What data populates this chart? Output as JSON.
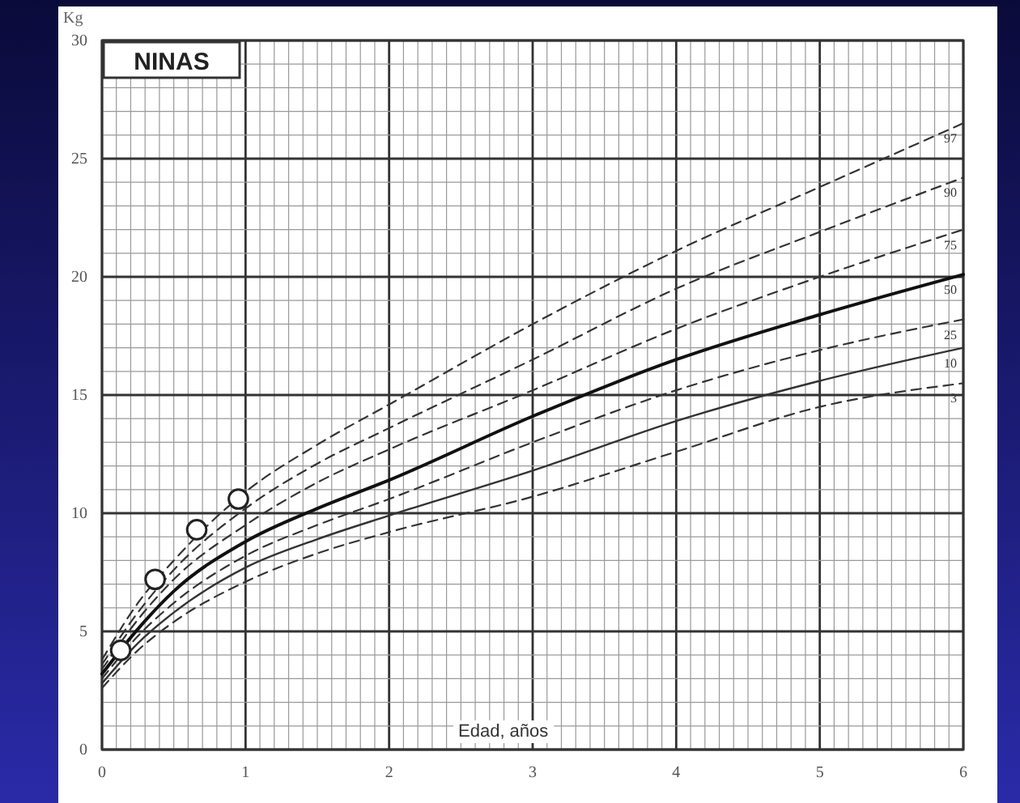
{
  "chart_data": {
    "type": "line",
    "title": "NINAS",
    "xlabel": "Edad, años",
    "ylabel": "Kg",
    "x": [
      0,
      0.25,
      0.5,
      1,
      1.5,
      2,
      3,
      4,
      5,
      6
    ],
    "xlim": [
      0,
      6
    ],
    "xticks": [
      0,
      1,
      2,
      3,
      4,
      5,
      6
    ],
    "ylim": [
      0,
      30
    ],
    "yticks": [
      0,
      5,
      10,
      15,
      20,
      25,
      30
    ],
    "grid": true,
    "series": [
      {
        "name": "97",
        "color": "#333333",
        "line_style": "dashed",
        "values": [
          3.8,
          6.2,
          8.0,
          10.9,
          12.9,
          14.6,
          18.0,
          21.1,
          23.8,
          26.5
        ]
      },
      {
        "name": "90",
        "color": "#333333",
        "line_style": "dashed",
        "values": [
          3.6,
          5.8,
          7.6,
          10.2,
          12.1,
          13.6,
          16.5,
          19.5,
          21.9,
          24.2
        ]
      },
      {
        "name": "75",
        "color": "#333333",
        "line_style": "dashed",
        "values": [
          3.4,
          5.5,
          7.2,
          9.5,
          11.3,
          12.7,
          15.2,
          17.8,
          20.0,
          22.0
        ]
      },
      {
        "name": "50",
        "color": "#111111",
        "line_style": "solid",
        "values": [
          3.2,
          5.1,
          6.7,
          8.8,
          10.2,
          11.4,
          14.1,
          16.5,
          18.4,
          20.1
        ]
      },
      {
        "name": "25",
        "color": "#333333",
        "line_style": "dashed",
        "values": [
          3.0,
          4.8,
          6.2,
          8.2,
          9.5,
          10.6,
          13.0,
          15.2,
          16.9,
          18.2
        ]
      },
      {
        "name": "10",
        "color": "#333333",
        "line_style": "solid",
        "values": [
          2.8,
          4.5,
          5.8,
          7.7,
          8.9,
          9.9,
          11.8,
          13.9,
          15.6,
          17.0
        ]
      },
      {
        "name": "3",
        "color": "#333333",
        "line_style": "dashed",
        "values": [
          2.6,
          4.2,
          5.4,
          7.1,
          8.3,
          9.2,
          10.7,
          12.6,
          14.5,
          15.5
        ]
      },
      {
        "type": "scatter",
        "color": "#ffffff",
        "marker": "circle",
        "x": [
          0.13,
          0.37,
          0.66,
          0.95
        ],
        "values": [
          4.2,
          7.2,
          9.3,
          10.6
        ]
      }
    ]
  }
}
